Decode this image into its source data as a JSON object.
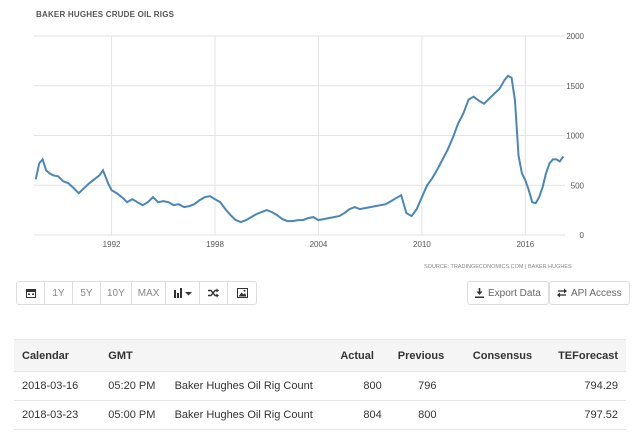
{
  "chart": {
    "source": "SOURCE: TRADINGECONOMICS.COM | BAKER HUGHES"
  },
  "chart_data": {
    "type": "line",
    "title": "BAKER HUGHES CRUDE OIL RIGS",
    "xlabel": "",
    "ylabel": "",
    "xlim": [
      1987.5,
      2018.3
    ],
    "ylim": [
      0,
      2000
    ],
    "x_ticks": [
      "1992",
      "1998",
      "2004",
      "2010",
      "2016"
    ],
    "y_ticks": [
      "0",
      "500",
      "1000",
      "1500",
      "2000"
    ],
    "grid": true,
    "line_color": "#4a86b8",
    "series": [
      {
        "x": [
          1987.6,
          1987.8,
          1988.0,
          1988.2,
          1988.4,
          1988.6,
          1988.9,
          1989.2,
          1989.5,
          1989.8,
          1990.1,
          1990.4,
          1990.7,
          1991.0,
          1991.3,
          1991.5,
          1991.8,
          1992.0,
          1992.3,
          1992.6,
          1992.9,
          1993.2,
          1993.5,
          1993.8,
          1994.1,
          1994.4,
          1994.7,
          1995.0,
          1995.3,
          1995.6,
          1995.9,
          1996.2,
          1996.5,
          1996.8,
          1997.1,
          1997.4,
          1997.7,
          1998.0,
          1998.3,
          1998.6,
          1998.9,
          1999.2,
          1999.5,
          1999.8,
          2000.1,
          2000.4,
          2000.7,
          2001.0,
          2001.3,
          2001.6,
          2001.9,
          2002.2,
          2002.5,
          2002.8,
          2003.1,
          2003.4,
          2003.7,
          2004.0,
          2004.3,
          2004.6,
          2004.9,
          2005.2,
          2005.5,
          2005.8,
          2006.1,
          2006.4,
          2006.7,
          2007.0,
          2007.3,
          2007.6,
          2007.9,
          2008.2,
          2008.5,
          2008.8,
          2009.1,
          2009.4,
          2009.7,
          2010.0,
          2010.3,
          2010.6,
          2010.9,
          2011.2,
          2011.5,
          2011.8,
          2012.1,
          2012.4,
          2012.7,
          2013.0,
          2013.3,
          2013.6,
          2013.9,
          2014.2,
          2014.5,
          2014.8,
          2015.0,
          2015.2,
          2015.4,
          2015.6,
          2015.8,
          2016.0,
          2016.2,
          2016.4,
          2016.6,
          2016.8,
          2017.0,
          2017.2,
          2017.4,
          2017.6,
          2017.8,
          2018.0,
          2018.2
        ],
        "y": [
          560,
          720,
          760,
          650,
          620,
          600,
          590,
          540,
          520,
          470,
          420,
          470,
          520,
          560,
          600,
          650,
          520,
          450,
          420,
          380,
          330,
          360,
          330,
          300,
          330,
          380,
          330,
          340,
          330,
          300,
          310,
          280,
          290,
          310,
          350,
          380,
          390,
          360,
          330,
          260,
          200,
          150,
          130,
          150,
          180,
          210,
          230,
          250,
          230,
          200,
          160,
          140,
          140,
          150,
          150,
          170,
          180,
          150,
          160,
          170,
          180,
          190,
          220,
          260,
          280,
          260,
          270,
          280,
          290,
          300,
          310,
          340,
          370,
          400,
          220,
          190,
          260,
          380,
          500,
          570,
          660,
          760,
          860,
          980,
          1120,
          1220,
          1360,
          1390,
          1350,
          1320,
          1370,
          1420,
          1470,
          1560,
          1600,
          1580,
          1350,
          800,
          620,
          550,
          450,
          330,
          320,
          380,
          480,
          620,
          720,
          760,
          760,
          740,
          790
        ]
      }
    ]
  },
  "toolbar": {
    "buttons": [
      {
        "name": "calendar-icon",
        "label": ""
      },
      {
        "name": "range-1y-button",
        "label": "1Y"
      },
      {
        "name": "range-5y-button",
        "label": "5Y"
      },
      {
        "name": "range-10y-button",
        "label": "10Y"
      },
      {
        "name": "range-max-button",
        "label": "MAX"
      }
    ],
    "export_label": "Export Data",
    "api_label": "API Access"
  },
  "table": {
    "headers": [
      "Calendar",
      "GMT",
      "",
      "Actual",
      "Previous",
      "Consensus",
      "TEForecast"
    ],
    "rows": [
      {
        "calendar": "2018-03-16",
        "gmt": "05:20 PM",
        "event": "Baker Hughes Oil Rig Count",
        "actual": "800",
        "previous": "796",
        "consensus": "",
        "teforecast": "794.29"
      },
      {
        "calendar": "2018-03-23",
        "gmt": "05:00 PM",
        "event": "Baker Hughes Oil Rig Count",
        "actual": "804",
        "previous": "800",
        "consensus": "",
        "teforecast": "797.52"
      }
    ]
  }
}
